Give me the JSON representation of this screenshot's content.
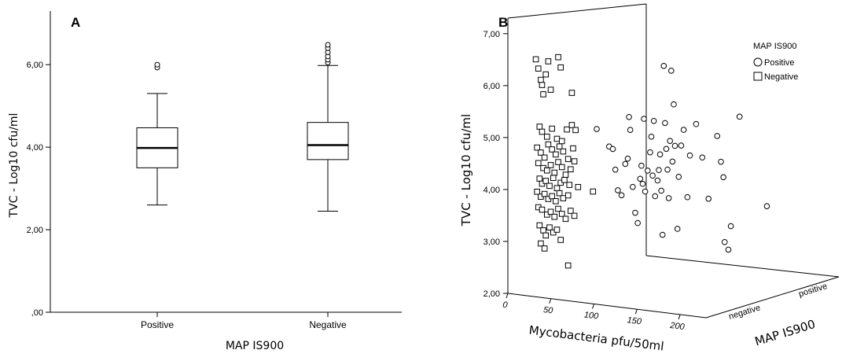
{
  "chart_data": [
    {
      "panel": "A",
      "type": "box",
      "xlabel": "MAP IS900",
      "ylabel": "TVC - Log10 cfu/ml",
      "ylim": [
        0,
        7.3
      ],
      "yticks": [
        ",00",
        "2,00",
        "4,00",
        "6,00"
      ],
      "ytick_values": [
        0,
        2,
        4,
        6
      ],
      "categories": [
        "Positive",
        "Negative"
      ],
      "boxes": [
        {
          "category": "Positive",
          "whisker_low": 2.6,
          "q1": 3.5,
          "median": 3.98,
          "q3": 4.47,
          "whisker_high": 5.3,
          "outliers": [
            5.93,
            6.0
          ]
        },
        {
          "category": "Negative",
          "whisker_low": 2.45,
          "q1": 3.7,
          "median": 4.05,
          "q3": 4.6,
          "whisker_high": 5.98,
          "outliers": [
            6.05,
            6.12,
            6.2,
            6.3,
            6.4,
            6.48
          ]
        }
      ]
    },
    {
      "panel": "B",
      "type": "scatter",
      "projection": "3d",
      "xlabel": "Mycobacteria pfu/50ml",
      "ylabel": "TVC - Log10 cfu/ml",
      "zlabel": "MAP IS900",
      "xticks": [
        "0",
        "50",
        "100",
        "150",
        "200"
      ],
      "xtick_values": [
        0,
        50,
        100,
        150,
        200
      ],
      "ylim": [
        2,
        7.3
      ],
      "yticks": [
        "2,00",
        "3,00",
        "4,00",
        "5,00",
        "6,00",
        "7,00"
      ],
      "ytick_values": [
        2,
        3,
        4,
        5,
        6,
        7
      ],
      "zticks": [
        "negative",
        "positive"
      ],
      "legend": {
        "title": "MAP IS900",
        "position": "top-right"
      },
      "series": [
        {
          "name": "Positive",
          "marker": "circle",
          "points": [
            [
              75,
              5.2
            ],
            [
              85,
              4.85
            ],
            [
              88,
              4.8
            ],
            [
              90,
              4.4
            ],
            [
              92,
              4.0
            ],
            [
              95,
              3.9
            ],
            [
              98,
              4.5
            ],
            [
              100,
              4.6
            ],
            [
              101,
              5.4
            ],
            [
              102,
              5.15
            ],
            [
              104,
              4.05
            ],
            [
              106,
              3.55
            ],
            [
              108,
              3.35
            ],
            [
              110,
              4.2
            ],
            [
              111,
              4.45
            ],
            [
              112,
              4.1
            ],
            [
              113,
              5.35
            ],
            [
              114,
              3.95
            ],
            [
              116,
              4.35
            ],
            [
              118,
              4.7
            ],
            [
              119,
              5.0
            ],
            [
              120,
              4.25
            ],
            [
              121,
              5.3
            ],
            [
              122,
              3.85
            ],
            [
              124,
              4.15
            ],
            [
              125,
              4.35
            ],
            [
              126,
              4.65
            ],
            [
              127,
              3.95
            ],
            [
              128,
              3.1
            ],
            [
              129,
              6.35
            ],
            [
              130,
              5.25
            ],
            [
              131,
              4.75
            ],
            [
              132,
              4.35
            ],
            [
              133,
              3.8
            ],
            [
              134,
              4.9
            ],
            [
              135,
              6.25
            ],
            [
              136,
              4.5
            ],
            [
              137,
              5.6
            ],
            [
              138,
              4.8
            ],
            [
              140,
              3.2
            ],
            [
              141,
              4.2
            ],
            [
              143,
              4.8
            ],
            [
              145,
              5.1
            ],
            [
              148,
              3.8
            ],
            [
              150,
              4.6
            ],
            [
              155,
              5.2
            ],
            [
              160,
              4.55
            ],
            [
              165,
              3.75
            ],
            [
              172,
              4.95
            ],
            [
              175,
              4.45
            ],
            [
              177,
              4.15
            ],
            [
              178,
              2.9
            ],
            [
              181,
              2.75
            ],
            [
              183,
              3.2
            ],
            [
              190,
              5.3
            ],
            [
              212,
              3.55
            ]
          ]
        },
        {
          "name": "Negative",
          "marker": "square",
          "points": [
            [
              26,
              6.6
            ],
            [
              28,
              6.42
            ],
            [
              30,
              6.2
            ],
            [
              31,
              6.1
            ],
            [
              32,
              5.92
            ],
            [
              34,
              6.3
            ],
            [
              36,
              6.55
            ],
            [
              38,
              6.0
            ],
            [
              44,
              6.62
            ],
            [
              46,
              6.42
            ],
            [
              55,
              5.92
            ],
            [
              29,
              5.3
            ],
            [
              31,
              5.2
            ],
            [
              35,
              5.1
            ],
            [
              39,
              5.25
            ],
            [
              43,
              5.05
            ],
            [
              47,
              5.0
            ],
            [
              51,
              5.22
            ],
            [
              55,
              5.3
            ],
            [
              58,
              5.2
            ],
            [
              27,
              4.9
            ],
            [
              30,
              4.8
            ],
            [
              33,
              4.7
            ],
            [
              36,
              4.95
            ],
            [
              39,
              4.85
            ],
            [
              42,
              4.75
            ],
            [
              45,
              4.9
            ],
            [
              48,
              4.8
            ],
            [
              52,
              4.65
            ],
            [
              56,
              4.85
            ],
            [
              28,
              4.6
            ],
            [
              32,
              4.5
            ],
            [
              35,
              4.45
            ],
            [
              38,
              4.55
            ],
            [
              41,
              4.4
            ],
            [
              44,
              4.6
            ],
            [
              47,
              4.5
            ],
            [
              50,
              4.35
            ],
            [
              54,
              4.45
            ],
            [
              57,
              4.6
            ],
            [
              29,
              4.3
            ],
            [
              31,
              4.2
            ],
            [
              34,
              4.25
            ],
            [
              37,
              4.15
            ],
            [
              40,
              4.3
            ],
            [
              43,
              4.1
            ],
            [
              46,
              4.2
            ],
            [
              49,
              4.25
            ],
            [
              53,
              4.15
            ],
            [
              60,
              4.1
            ],
            [
              27,
              4.05
            ],
            [
              30,
              3.95
            ],
            [
              33,
              4.0
            ],
            [
              36,
              3.9
            ],
            [
              39,
              3.95
            ],
            [
              42,
              3.85
            ],
            [
              45,
              4.0
            ],
            [
              48,
              3.9
            ],
            [
              52,
              3.95
            ],
            [
              72,
              4.0
            ],
            [
              28,
              3.75
            ],
            [
              31,
              3.7
            ],
            [
              35,
              3.6
            ],
            [
              38,
              3.65
            ],
            [
              41,
              3.55
            ],
            [
              44,
              3.7
            ],
            [
              47,
              3.6
            ],
            [
              50,
              3.5
            ],
            [
              54,
              3.65
            ],
            [
              57,
              3.55
            ],
            [
              29,
              3.4
            ],
            [
              32,
              3.3
            ],
            [
              34,
              3.2
            ],
            [
              37,
              3.35
            ],
            [
              40,
              3.25
            ],
            [
              43,
              3.3
            ],
            [
              46,
              3.1
            ],
            [
              30,
              3.05
            ],
            [
              33,
              2.95
            ],
            [
              52,
              2.6
            ]
          ]
        }
      ]
    }
  ]
}
